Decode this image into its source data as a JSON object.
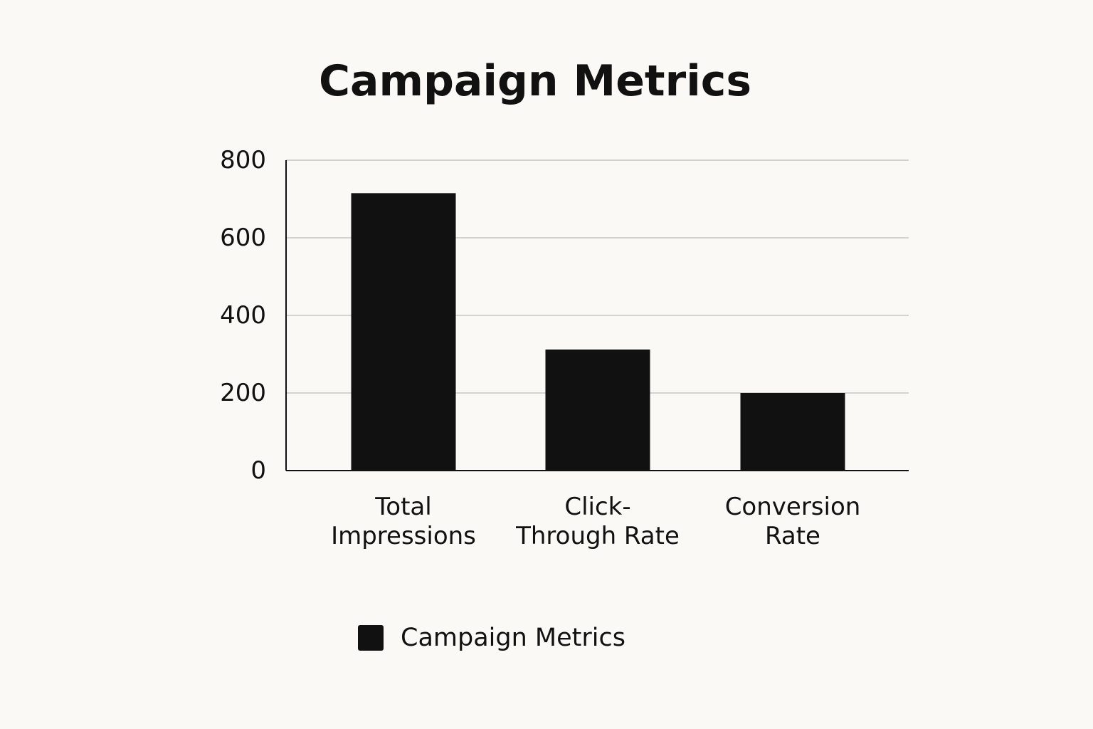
{
  "chart_data": {
    "type": "bar",
    "title": "Campaign Metrics",
    "categories": [
      [
        "Total",
        "Impressions"
      ],
      [
        "Click-",
        "Through Rate"
      ],
      [
        "Conversion",
        "Rate"
      ]
    ],
    "series": [
      {
        "name": "Campaign Metrics",
        "values": [
          715,
          312,
          200
        ],
        "color": "#111111"
      }
    ],
    "xlabel": "",
    "ylabel": "",
    "ylim": [
      0,
      800
    ],
    "yticks": [
      "0",
      "200",
      "400",
      "600",
      "800"
    ],
    "ytick_values": [
      0,
      200,
      400,
      600,
      800
    ],
    "grid": "horizontal",
    "legend_position": "bottom"
  },
  "colors": {
    "background": "#faf9f5",
    "bar": "#111111",
    "grid": "#bdbdbd",
    "axis": "#111111"
  }
}
